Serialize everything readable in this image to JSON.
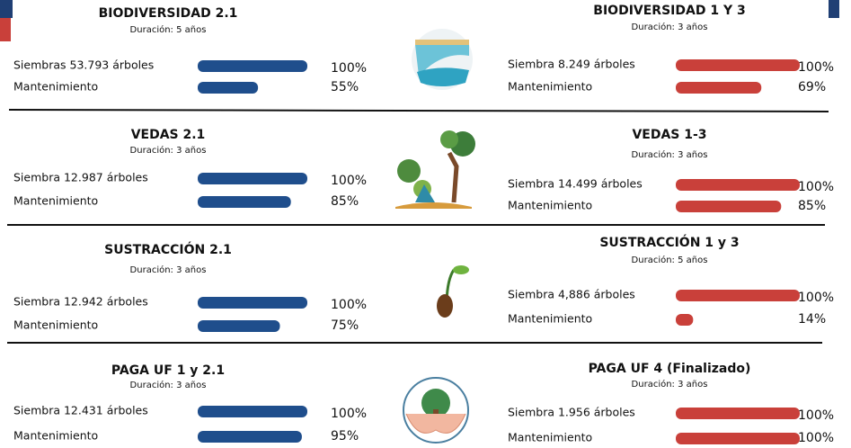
{
  "rows": [
    {
      "left": {
        "title": "BIODIVERSIDAD 2.1",
        "duration": "Duración: 5 años",
        "items": [
          {
            "label": "Siembras 53.793 árboles",
            "value": 100,
            "percent": "100%"
          },
          {
            "label": "Mantenimiento",
            "value": 55,
            "percent": "55%"
          }
        ]
      },
      "right": {
        "title": "BIODIVERSIDAD 1 Y 3",
        "duration": "Duración: 3 años",
        "items": [
          {
            "label": "Siembra 8.249 árboles",
            "value": 100,
            "percent": "100%"
          },
          {
            "label": "Mantenimiento",
            "value": 69,
            "percent": "69%"
          }
        ]
      }
    },
    {
      "left": {
        "title": "VEDAS 2.1",
        "duration": "Duración: 3 años",
        "items": [
          {
            "label": "Siembra 12.987 árboles",
            "value": 100,
            "percent": "100%"
          },
          {
            "label": "Mantenimiento",
            "value": 85,
            "percent": "85%"
          }
        ]
      },
      "right": {
        "title": "VEDAS 1-3",
        "duration": "Duración: 3 años",
        "items": [
          {
            "label": "Siembra 14.499 árboles",
            "value": 100,
            "percent": "100%"
          },
          {
            "label": "Mantenimiento",
            "value": 85,
            "percent": "85%"
          }
        ]
      }
    },
    {
      "left": {
        "title": "SUSTRACCIÓN 2.1",
        "duration": "Duración: 3 años",
        "items": [
          {
            "label": "Siembra 12.942 árboles",
            "value": 100,
            "percent": "100%"
          },
          {
            "label": "Mantenimiento",
            "value": 75,
            "percent": "75%"
          }
        ]
      },
      "right": {
        "title": "SUSTRACCIÓN 1 y 3",
        "duration": "Duración: 5 años",
        "items": [
          {
            "label": "Siembra 4,886 árboles",
            "value": 100,
            "percent": "100%"
          },
          {
            "label": "Mantenimiento",
            "value": 14,
            "percent": "14%"
          }
        ]
      }
    },
    {
      "left": {
        "title": "PAGA UF 1 y 2.1",
        "duration": "Duración: 3 años",
        "items": [
          {
            "label": "Siembra 12.431 árboles",
            "value": 100,
            "percent": "100%"
          },
          {
            "label": "Mantenimiento",
            "value": 95,
            "percent": "95%"
          }
        ]
      },
      "right": {
        "title": "PAGA UF 4 (Finalizado)",
        "duration": "Duración: 3 años",
        "items": [
          {
            "label": "Siembra 1.956 árboles",
            "value": 100,
            "percent": "100%"
          },
          {
            "label": "Mantenimiento",
            "value": 100,
            "percent": "100%"
          }
        ]
      }
    }
  ]
}
